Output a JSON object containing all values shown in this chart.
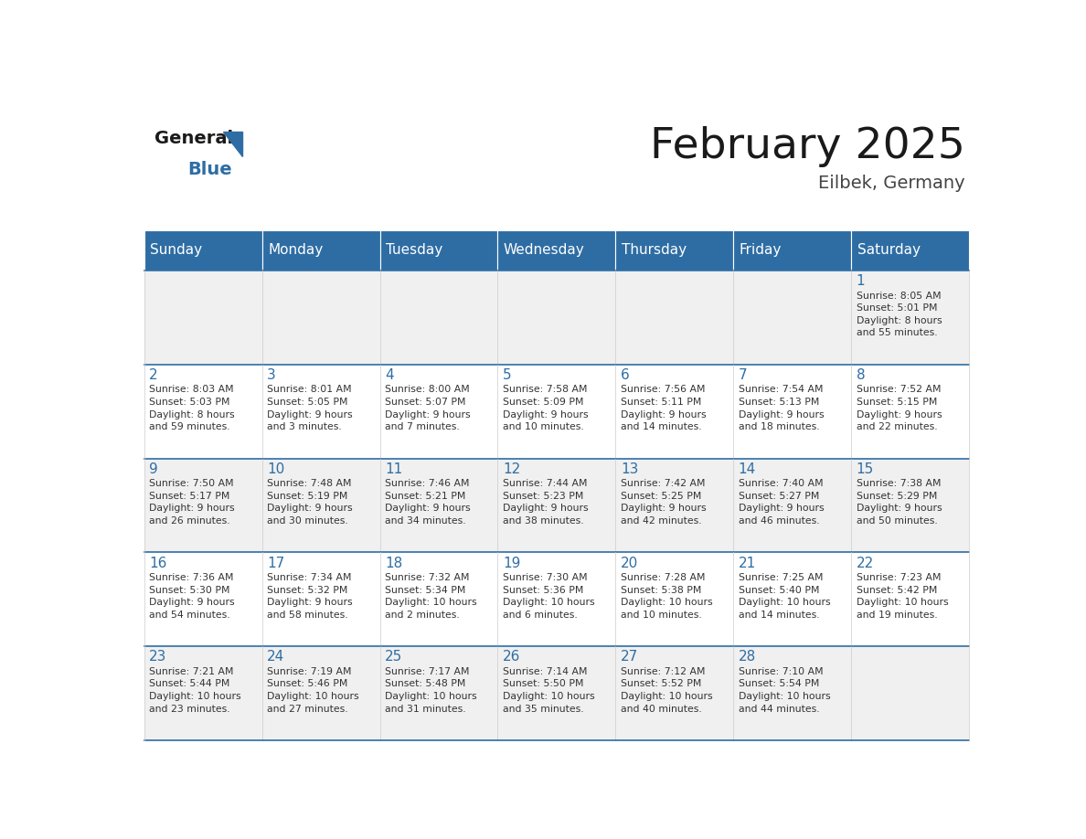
{
  "title": "February 2025",
  "subtitle": "Eilbek, Germany",
  "header_bg": "#2E6DA4",
  "header_text_color": "#FFFFFF",
  "line_color": "#2E6DA4",
  "day_number_color": "#2E6DA4",
  "cell_text_color": "#333333",
  "days_of_week": [
    "Sunday",
    "Monday",
    "Tuesday",
    "Wednesday",
    "Thursday",
    "Friday",
    "Saturday"
  ],
  "weeks": [
    [
      {
        "day": null,
        "text": null
      },
      {
        "day": null,
        "text": null
      },
      {
        "day": null,
        "text": null
      },
      {
        "day": null,
        "text": null
      },
      {
        "day": null,
        "text": null
      },
      {
        "day": null,
        "text": null
      },
      {
        "day": "1",
        "text": "Sunrise: 8:05 AM\nSunset: 5:01 PM\nDaylight: 8 hours\nand 55 minutes."
      }
    ],
    [
      {
        "day": "2",
        "text": "Sunrise: 8:03 AM\nSunset: 5:03 PM\nDaylight: 8 hours\nand 59 minutes."
      },
      {
        "day": "3",
        "text": "Sunrise: 8:01 AM\nSunset: 5:05 PM\nDaylight: 9 hours\nand 3 minutes."
      },
      {
        "day": "4",
        "text": "Sunrise: 8:00 AM\nSunset: 5:07 PM\nDaylight: 9 hours\nand 7 minutes."
      },
      {
        "day": "5",
        "text": "Sunrise: 7:58 AM\nSunset: 5:09 PM\nDaylight: 9 hours\nand 10 minutes."
      },
      {
        "day": "6",
        "text": "Sunrise: 7:56 AM\nSunset: 5:11 PM\nDaylight: 9 hours\nand 14 minutes."
      },
      {
        "day": "7",
        "text": "Sunrise: 7:54 AM\nSunset: 5:13 PM\nDaylight: 9 hours\nand 18 minutes."
      },
      {
        "day": "8",
        "text": "Sunrise: 7:52 AM\nSunset: 5:15 PM\nDaylight: 9 hours\nand 22 minutes."
      }
    ],
    [
      {
        "day": "9",
        "text": "Sunrise: 7:50 AM\nSunset: 5:17 PM\nDaylight: 9 hours\nand 26 minutes."
      },
      {
        "day": "10",
        "text": "Sunrise: 7:48 AM\nSunset: 5:19 PM\nDaylight: 9 hours\nand 30 minutes."
      },
      {
        "day": "11",
        "text": "Sunrise: 7:46 AM\nSunset: 5:21 PM\nDaylight: 9 hours\nand 34 minutes."
      },
      {
        "day": "12",
        "text": "Sunrise: 7:44 AM\nSunset: 5:23 PM\nDaylight: 9 hours\nand 38 minutes."
      },
      {
        "day": "13",
        "text": "Sunrise: 7:42 AM\nSunset: 5:25 PM\nDaylight: 9 hours\nand 42 minutes."
      },
      {
        "day": "14",
        "text": "Sunrise: 7:40 AM\nSunset: 5:27 PM\nDaylight: 9 hours\nand 46 minutes."
      },
      {
        "day": "15",
        "text": "Sunrise: 7:38 AM\nSunset: 5:29 PM\nDaylight: 9 hours\nand 50 minutes."
      }
    ],
    [
      {
        "day": "16",
        "text": "Sunrise: 7:36 AM\nSunset: 5:30 PM\nDaylight: 9 hours\nand 54 minutes."
      },
      {
        "day": "17",
        "text": "Sunrise: 7:34 AM\nSunset: 5:32 PM\nDaylight: 9 hours\nand 58 minutes."
      },
      {
        "day": "18",
        "text": "Sunrise: 7:32 AM\nSunset: 5:34 PM\nDaylight: 10 hours\nand 2 minutes."
      },
      {
        "day": "19",
        "text": "Sunrise: 7:30 AM\nSunset: 5:36 PM\nDaylight: 10 hours\nand 6 minutes."
      },
      {
        "day": "20",
        "text": "Sunrise: 7:28 AM\nSunset: 5:38 PM\nDaylight: 10 hours\nand 10 minutes."
      },
      {
        "day": "21",
        "text": "Sunrise: 7:25 AM\nSunset: 5:40 PM\nDaylight: 10 hours\nand 14 minutes."
      },
      {
        "day": "22",
        "text": "Sunrise: 7:23 AM\nSunset: 5:42 PM\nDaylight: 10 hours\nand 19 minutes."
      }
    ],
    [
      {
        "day": "23",
        "text": "Sunrise: 7:21 AM\nSunset: 5:44 PM\nDaylight: 10 hours\nand 23 minutes."
      },
      {
        "day": "24",
        "text": "Sunrise: 7:19 AM\nSunset: 5:46 PM\nDaylight: 10 hours\nand 27 minutes."
      },
      {
        "day": "25",
        "text": "Sunrise: 7:17 AM\nSunset: 5:48 PM\nDaylight: 10 hours\nand 31 minutes."
      },
      {
        "day": "26",
        "text": "Sunrise: 7:14 AM\nSunset: 5:50 PM\nDaylight: 10 hours\nand 35 minutes."
      },
      {
        "day": "27",
        "text": "Sunrise: 7:12 AM\nSunset: 5:52 PM\nDaylight: 10 hours\nand 40 minutes."
      },
      {
        "day": "28",
        "text": "Sunrise: 7:10 AM\nSunset: 5:54 PM\nDaylight: 10 hours\nand 44 minutes."
      },
      {
        "day": null,
        "text": null
      }
    ]
  ]
}
